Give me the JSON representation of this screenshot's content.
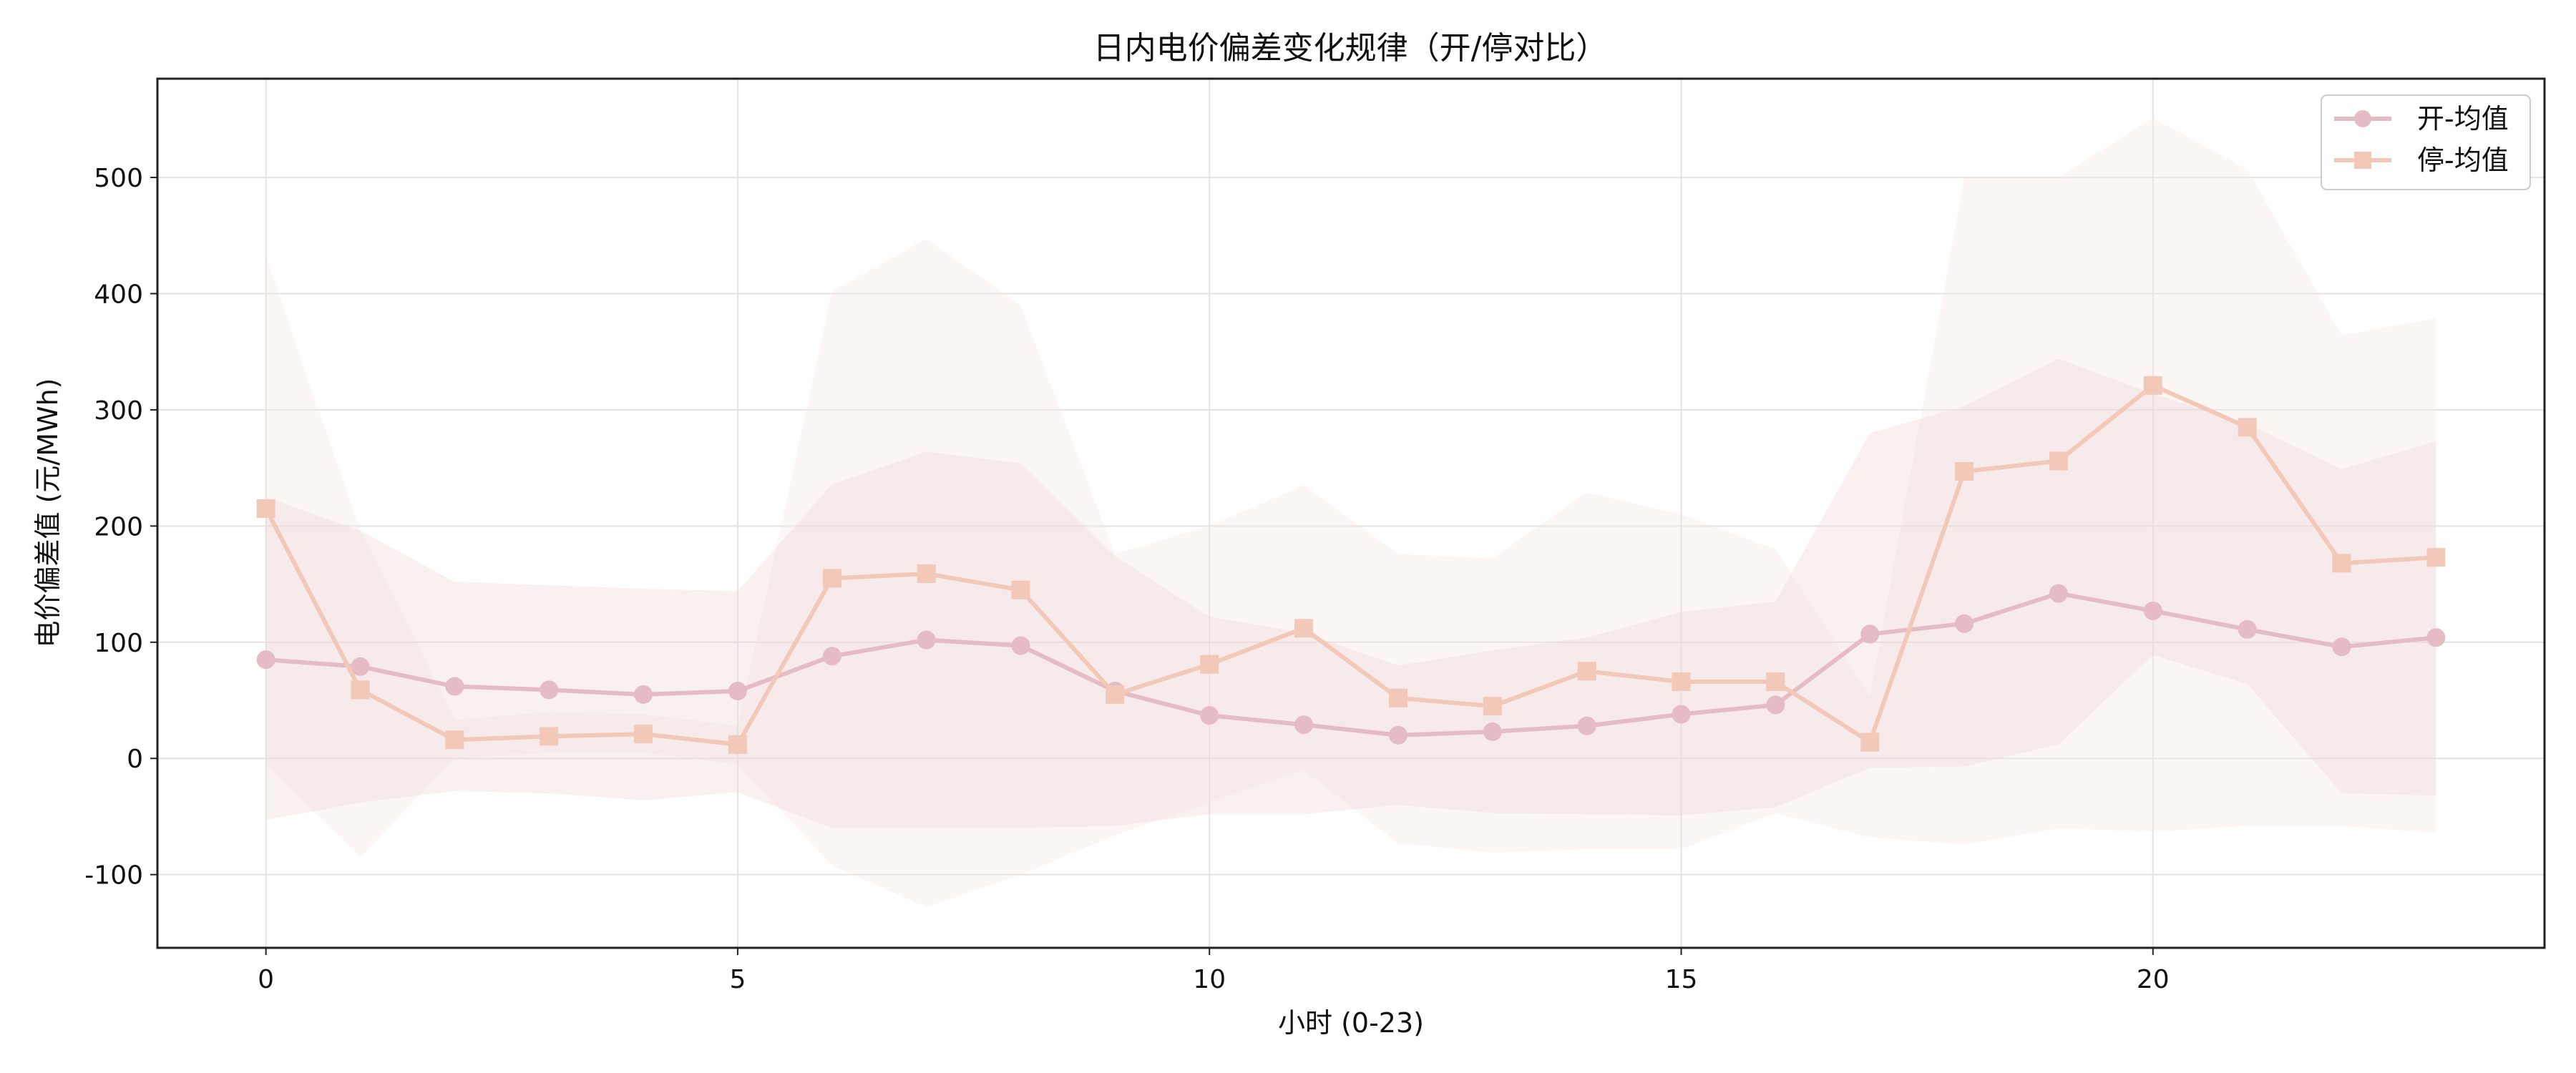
{
  "chart_data": {
    "type": "line",
    "title": "日内电价偏差变化规律（开/停对比）",
    "xlabel": "小时 (0-23)",
    "ylabel": "电价偏差值 (元/MWh)",
    "x": [
      0,
      1,
      2,
      3,
      4,
      5,
      6,
      7,
      8,
      9,
      10,
      11,
      12,
      13,
      14,
      15,
      16,
      17,
      18,
      19,
      20,
      21,
      22,
      23
    ],
    "xlim": [
      -1.15,
      24.15
    ],
    "ylim": [
      -163,
      585
    ],
    "xticks": [
      0,
      5,
      10,
      15,
      20
    ],
    "yticks": [
      -100,
      0,
      100,
      200,
      300,
      400,
      500
    ],
    "grid": true,
    "legend_position": "top-right",
    "series": [
      {
        "name": "开-均值",
        "marker": "circle",
        "color": "#e6bcc4",
        "values": [
          85,
          79,
          62,
          59,
          55,
          58,
          88,
          102,
          97,
          58,
          37,
          29,
          20,
          23,
          28,
          38,
          46,
          107,
          116,
          142,
          127,
          111,
          96,
          104
        ],
        "band_low": [
          -53,
          -38,
          -28,
          -30,
          -36,
          -29,
          -60,
          -60,
          -60,
          -58,
          -48,
          -48,
          -40,
          -47,
          -48,
          -49,
          -42,
          -8,
          -7,
          12,
          89,
          64,
          -30,
          -32
        ],
        "band_high": [
          225,
          196,
          152,
          149,
          146,
          144,
          236,
          264,
          254,
          174,
          122,
          108,
          80,
          93,
          104,
          126,
          135,
          280,
          303,
          344,
          314,
          288,
          249,
          273
        ],
        "band_color": "#f0d8d8"
      },
      {
        "name": "停-均值",
        "marker": "square",
        "color": "#f2c8b8",
        "values": [
          215,
          59,
          16,
          19,
          21,
          12,
          155,
          159,
          145,
          55,
          81,
          112,
          52,
          45,
          75,
          66,
          66,
          14,
          247,
          256,
          321,
          285,
          168,
          173
        ],
        "band_low": [
          -5,
          -85,
          0,
          5,
          5,
          -5,
          -92,
          -128,
          -100,
          -66,
          -38,
          -10,
          -73,
          -81,
          -78,
          -78,
          -47,
          -68,
          -74,
          -60,
          -63,
          -58,
          -58,
          -64
        ],
        "band_high": [
          432,
          196,
          33,
          40,
          38,
          28,
          402,
          447,
          390,
          176,
          200,
          235,
          176,
          172,
          229,
          210,
          180,
          53,
          500,
          500,
          551,
          507,
          364,
          379
        ],
        "band_color": "#f5e3df"
      }
    ]
  }
}
